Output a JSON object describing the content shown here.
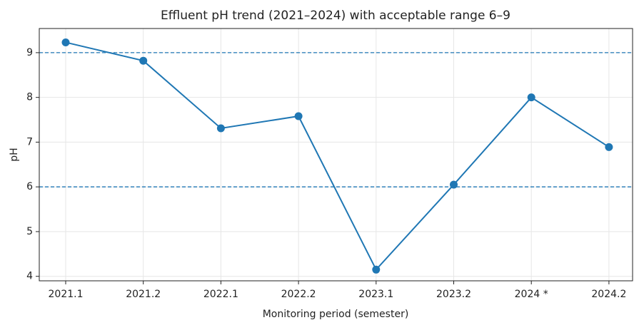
{
  "chart_data": {
    "type": "line",
    "title": "Effluent pH trend (2021–2024) with acceptable range 6–9",
    "x_label": "Monitoring period (semester)",
    "y_label": "pH",
    "categories": [
      "2021.1",
      "2021.2",
      "2022.1",
      "2022.2",
      "2023.1",
      "2023.2",
      "2024 *",
      "2024.2"
    ],
    "series": [
      {
        "name": "pH",
        "color": "#1f77b4",
        "values": [
          9.23,
          8.82,
          7.31,
          7.58,
          4.15,
          6.05,
          8.0,
          6.89
        ]
      }
    ],
    "reference_lines": [
      6,
      9
    ],
    "reference_color": "#1f77b4",
    "ylim": [
      3.9,
      9.54
    ],
    "yticks": [
      4,
      5,
      6,
      7,
      8,
      9
    ],
    "grid": true
  }
}
